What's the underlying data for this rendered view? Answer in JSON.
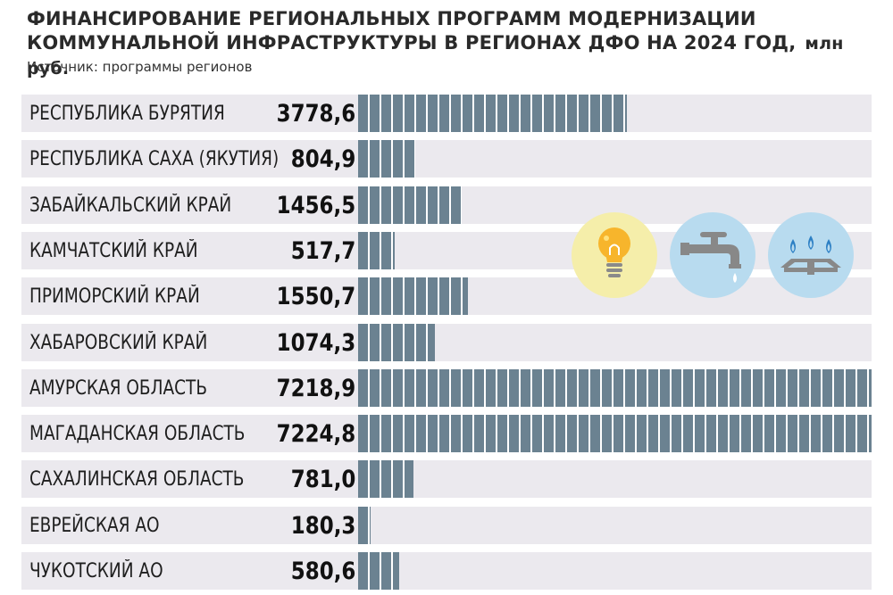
{
  "header": {
    "title": "ФИНАНСИРОВАНИЕ РЕГИОНАЛЬНЫХ ПРОГРАММ МОДЕРНИЗАЦИИ КОММУНАЛЬНОЙ ИНФРАСТРУКТУРЫ В РЕГИОНАХ ДФО НА 2024 ГОД,",
    "unit": "млн руб.",
    "source": "Источник: программы регионов"
  },
  "icons": [
    {
      "name": "light-bulb-icon",
      "bg": "#f5eeaa"
    },
    {
      "name": "water-tap-icon",
      "bg": "#b8dbef"
    },
    {
      "name": "gas-burner-icon",
      "bg": "#b8dbef"
    }
  ],
  "colors": {
    "bar": "#6b8291",
    "row_bg": "#ebe9ee",
    "separator": "#ffffff"
  },
  "chart_data": {
    "type": "bar",
    "orientation": "horizontal",
    "categories": [
      "РЕСПУБЛИКА БУРЯТИЯ",
      "РЕСПУБЛИКА САХА (ЯКУТИЯ)",
      "ЗАБАЙКАЛЬСКИЙ КРАЙ",
      "КАМЧАТСКИЙ КРАЙ",
      "ПРИМОРСКИЙ КРАЙ",
      "ХАБАРОВСКИЙ КРАЙ",
      "АМУРСКАЯ ОБЛАСТЬ",
      "МАГАДАНСКАЯ ОБЛАСТЬ",
      "САХАЛИНСКАЯ ОБЛАСТЬ",
      "ЕВРЕЙСКАЯ АО",
      "ЧУКОТСКИЙ АО"
    ],
    "values": [
      3778.6,
      804.9,
      1456.5,
      517.7,
      1550.7,
      1074.3,
      7218.9,
      7224.8,
      781.0,
      180.3,
      580.6
    ],
    "value_labels": [
      "3778,6",
      "804,9",
      "1456,5",
      "517,7",
      "1550,7",
      "1074,3",
      "7218,9",
      "7224,8",
      "781,0",
      "180,3",
      "580,6"
    ],
    "xlim": [
      0,
      7224.8
    ],
    "grid": false,
    "legend": "none"
  }
}
